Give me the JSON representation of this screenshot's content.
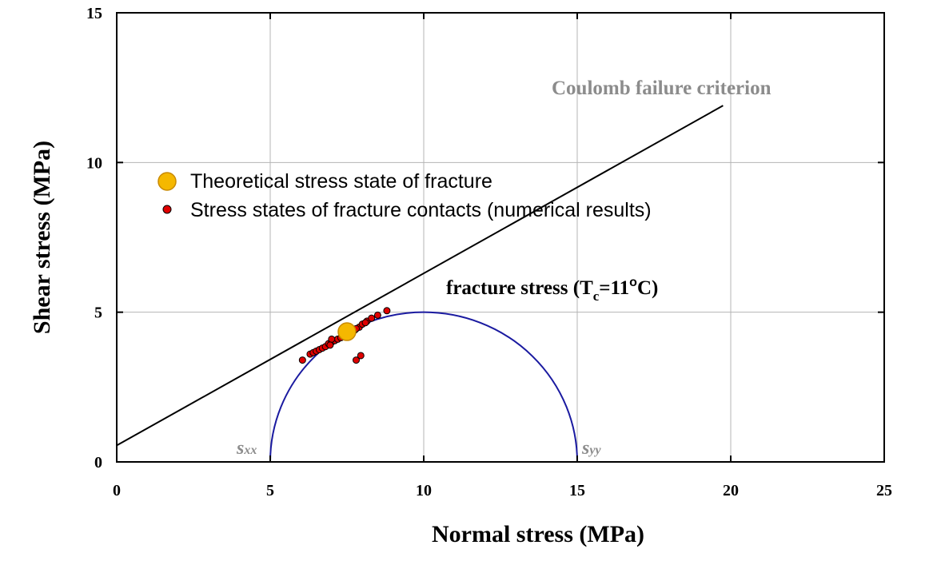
{
  "chart_data": {
    "type": "scatter",
    "xlabel": "Normal stress (MPa)",
    "ylabel": "Shear stress (MPa)",
    "xlim": [
      0,
      25
    ],
    "ylim": [
      0,
      15
    ],
    "x_ticks": [
      "0",
      "5",
      "10",
      "15",
      "20",
      "25"
    ],
    "y_ticks": [
      "0",
      "5",
      "10",
      "15"
    ],
    "grid": true,
    "legend_position": "upper-left",
    "series": [
      {
        "name": "Theoretical stress state of fracture",
        "color": "#f5b800",
        "marker": "large-circle",
        "points": [
          [
            7.5,
            4.35
          ]
        ]
      },
      {
        "name": "Stress states of fracture contacts (numerical results)",
        "color": "#e00000",
        "marker": "small-circle",
        "points": [
          [
            6.05,
            3.4
          ],
          [
            6.3,
            3.6
          ],
          [
            6.4,
            3.65
          ],
          [
            6.5,
            3.7
          ],
          [
            6.6,
            3.75
          ],
          [
            6.7,
            3.8
          ],
          [
            6.8,
            3.85
          ],
          [
            6.9,
            3.95
          ],
          [
            7.0,
            4.0
          ],
          [
            7.1,
            4.05
          ],
          [
            7.2,
            4.1
          ],
          [
            7.3,
            4.15
          ],
          [
            7.4,
            4.2
          ],
          [
            7.55,
            4.3
          ],
          [
            7.65,
            4.35
          ],
          [
            7.75,
            4.4
          ],
          [
            7.9,
            4.5
          ],
          [
            8.0,
            4.6
          ],
          [
            8.15,
            4.7
          ],
          [
            8.3,
            4.8
          ],
          [
            8.5,
            4.9
          ],
          [
            8.8,
            5.05
          ],
          [
            7.8,
            3.4
          ],
          [
            7.95,
            3.55
          ],
          [
            7.0,
            4.1
          ],
          [
            6.95,
            3.9
          ],
          [
            7.8,
            4.45
          ],
          [
            8.1,
            4.65
          ]
        ]
      }
    ],
    "lines": [
      {
        "name": "Coulomb failure criterion",
        "color": "#000000",
        "x": [
          0,
          19.75
        ],
        "y": [
          0.55,
          11.9
        ]
      }
    ],
    "circle": {
      "name": "fracture stress",
      "color": "#1a1aa0",
      "center_x": 10,
      "radius": 5
    },
    "annotations": {
      "coulomb": "Coulomb failure criterion",
      "fracture_main": "fracture stress (T",
      "fracture_sub": "c",
      "fracture_mid": "=11",
      "fracture_sup": "o",
      "fracture_end": "C)",
      "sigma_xx_symbol": "s",
      "sigma_xx_sub": "xx",
      "sigma_yy_symbol": "s",
      "sigma_yy_sub": "yy"
    }
  }
}
